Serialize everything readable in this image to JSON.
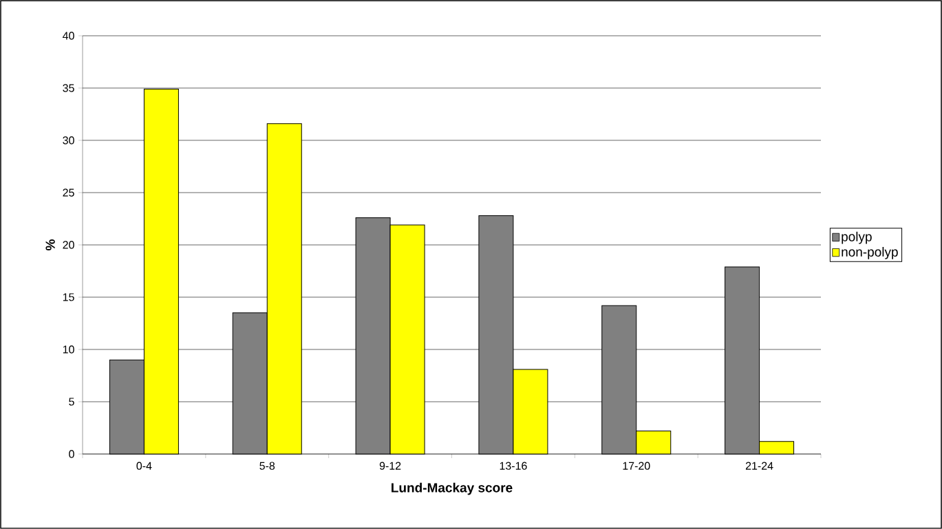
{
  "chart_data": {
    "type": "bar",
    "xlabel": "Lund-Mackay score",
    "ylabel": "%",
    "categories": [
      "0-4",
      "5-8",
      "9-12",
      "13-16",
      "17-20",
      "21-24"
    ],
    "series": [
      {
        "name": "polyp",
        "color": "#808080",
        "values": [
          9.0,
          13.5,
          22.6,
          22.8,
          14.2,
          17.9
        ]
      },
      {
        "name": "non-polyp",
        "color": "#ffff00",
        "values": [
          34.9,
          31.6,
          21.9,
          8.1,
          2.2,
          1.2
        ]
      }
    ],
    "ylim": [
      0,
      40
    ],
    "yticks": [
      0,
      5,
      10,
      15,
      20,
      25,
      30,
      35,
      40
    ],
    "grid": "y",
    "legend": "right"
  }
}
